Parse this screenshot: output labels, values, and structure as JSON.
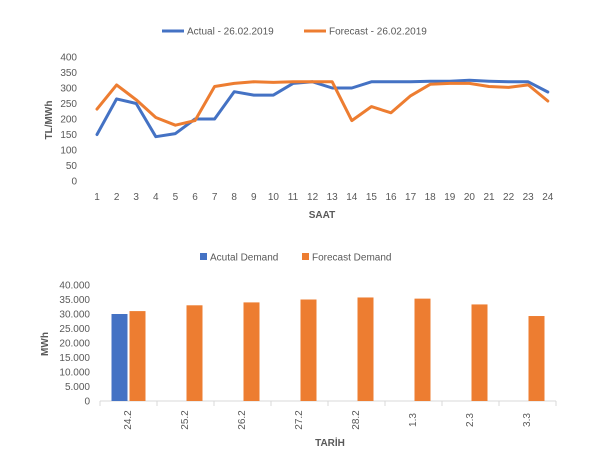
{
  "chart_data": [
    {
      "type": "line",
      "legend": {
        "placement": "top",
        "entries": [
          "Actual - 26.02.2019",
          "Forecast - 26.02.2019"
        ]
      },
      "x": [
        "1",
        "2",
        "3",
        "4",
        "5",
        "6",
        "7",
        "8",
        "9",
        "10",
        "11",
        "12",
        "13",
        "14",
        "15",
        "16",
        "17",
        "18",
        "19",
        "20",
        "21",
        "22",
        "23",
        "24"
      ],
      "xlabel": "SAAT",
      "ylabel": "TL/MWh",
      "ylim": [
        0,
        400
      ],
      "yticks": [
        "0",
        "50",
        "100",
        "150",
        "200",
        "250",
        "300",
        "350",
        "400"
      ],
      "grid": false,
      "series": [
        {
          "name": "Actual - 26.02.2019",
          "color": "#4472C4",
          "values": [
            150,
            265,
            250,
            143,
            153,
            200,
            200,
            288,
            277,
            277,
            315,
            320,
            300,
            300,
            320,
            320,
            320,
            322,
            322,
            325,
            322,
            320,
            320,
            287
          ]
        },
        {
          "name": "Forecast - 26.02.2019",
          "color": "#ED7D31",
          "values": [
            232,
            310,
            262,
            205,
            180,
            195,
            305,
            315,
            320,
            318,
            320,
            320,
            320,
            195,
            240,
            220,
            275,
            312,
            315,
            315,
            305,
            302,
            310,
            258
          ]
        }
      ]
    },
    {
      "type": "bar",
      "legend": {
        "placement": "top",
        "entries": [
          "Acutal Demand",
          "Forecast Demand"
        ]
      },
      "categories": [
        "24.2",
        "25.2",
        "26.2",
        "27.2",
        "28.2",
        "1.3",
        "2.3",
        "3.3"
      ],
      "xlabel": "TARİH",
      "ylabel": "MWh",
      "ylim": [
        0,
        40000
      ],
      "yticks": [
        "0",
        "5.000",
        "10.000",
        "15.000",
        "20.000",
        "25.000",
        "30.000",
        "35.000",
        "40.000"
      ],
      "grid": false,
      "series": [
        {
          "name": "Acutal Demand",
          "color": "#4472C4",
          "values": [
            30000,
            null,
            null,
            null,
            null,
            null,
            null,
            null
          ]
        },
        {
          "name": "Forecast Demand",
          "color": "#ED7D31",
          "values": [
            31000,
            33000,
            34000,
            35000,
            35700,
            35300,
            33300,
            29300
          ]
        }
      ]
    }
  ]
}
